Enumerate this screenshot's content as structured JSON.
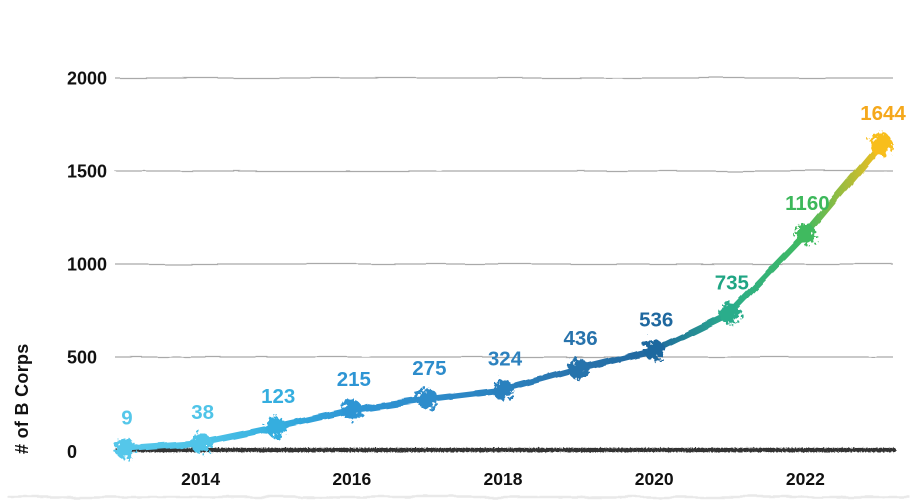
{
  "chart_data": {
    "type": "line",
    "title": "",
    "subtitle": "",
    "xlabel": "",
    "ylabel": "# of B Corps",
    "x": [
      2013,
      2014,
      2015,
      2016,
      2017,
      2018,
      2019,
      2020,
      2021,
      2022,
      2023
    ],
    "values": [
      9,
      38,
      123,
      215,
      275,
      324,
      436,
      536,
      735,
      1160,
      1644
    ],
    "labels": [
      "9",
      "38",
      "123",
      "215",
      "275",
      "324",
      "436",
      "536",
      "735",
      "1160",
      "1644"
    ],
    "yticks": [
      0,
      500,
      1000,
      1500,
      2000
    ],
    "xticks": [
      2014,
      2016,
      2018,
      2020,
      2022
    ],
    "ylim": [
      0,
      2000
    ],
    "xlim": [
      2013,
      2023
    ],
    "grid": true,
    "legend": false,
    "style": "hand-drawn-scribble",
    "point_colors": [
      "#55c7ea",
      "#4fc4e8",
      "#35aedf",
      "#2e95d4",
      "#2d8ccb",
      "#2c81be",
      "#2873ac",
      "#1f689f",
      "#2bad8b",
      "#41ba5f",
      "#f8be1d"
    ],
    "label_colors": [
      "#55c7ea",
      "#4fc4e8",
      "#35aedf",
      "#2e95d4",
      "#2d8ccb",
      "#2c81be",
      "#2873ac",
      "#1f689f",
      "#1fa583",
      "#3db85b",
      "#f5a81b"
    ],
    "grid_color": "#a9a9a9",
    "axis_color": "#222222",
    "tick_color": "#111111",
    "background": "#ffffff"
  }
}
